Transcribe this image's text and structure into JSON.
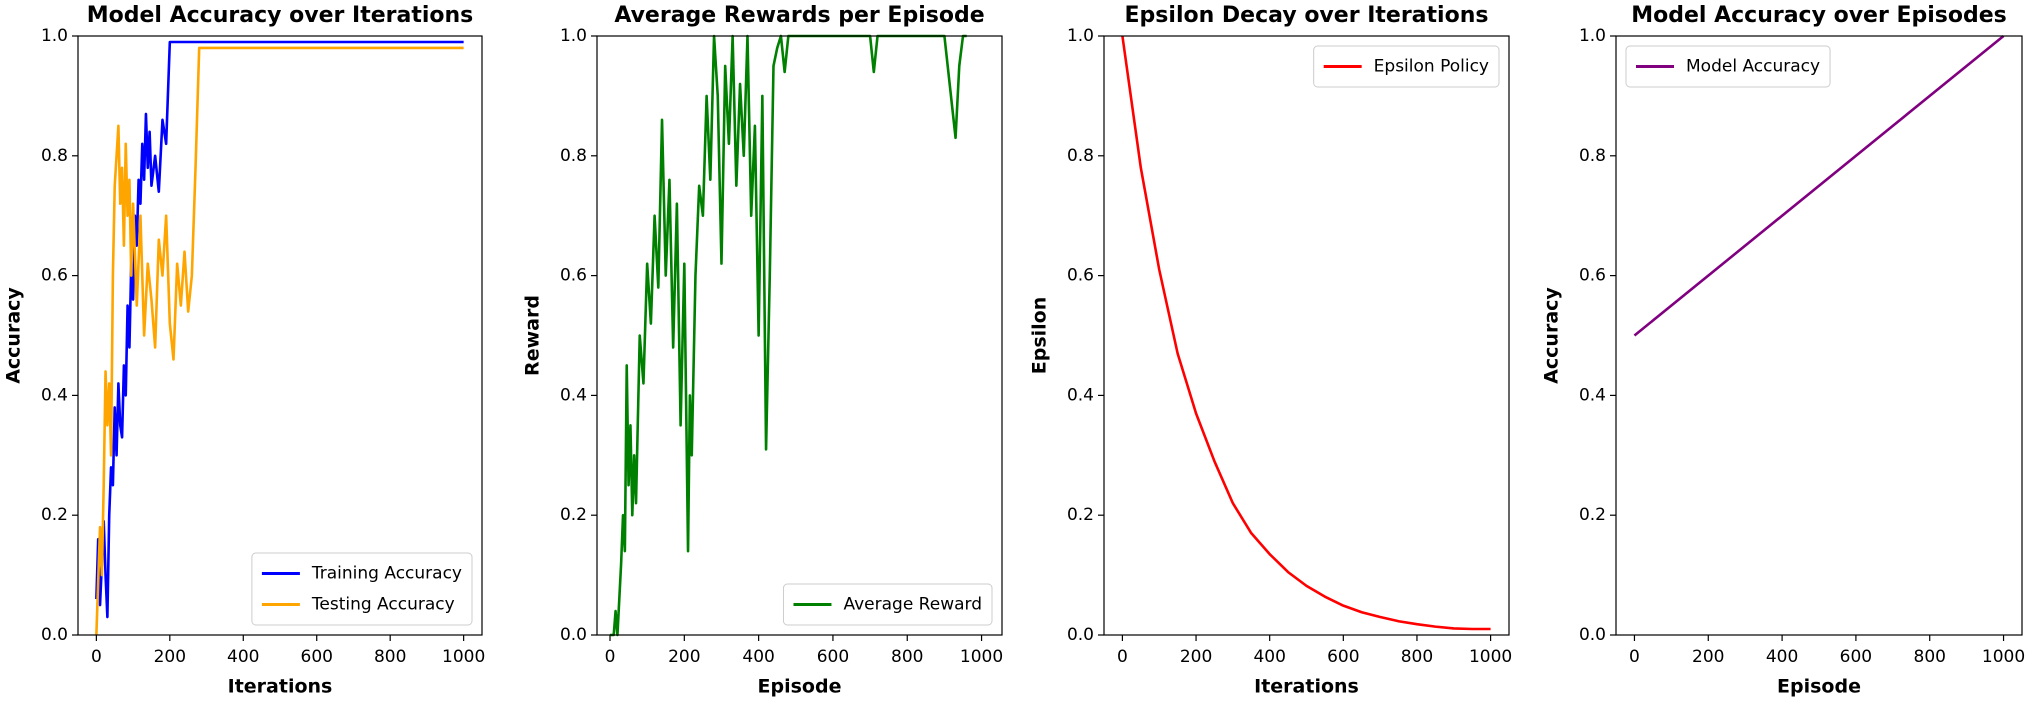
{
  "chart_data": [
    {
      "type": "line",
      "title": "Model Accuracy over Iterations",
      "xlabel": "Iterations",
      "ylabel": "Accuracy",
      "xlim": [
        -50,
        1050
      ],
      "ylim": [
        0,
        1
      ],
      "xticks": [
        0,
        200,
        400,
        600,
        800,
        1000
      ],
      "yticks": [
        {
          "value": 0,
          "label": "0.0"
        },
        {
          "value": 0.2,
          "label": "0.2"
        },
        {
          "value": 0.4,
          "label": "0.4"
        },
        {
          "value": 0.6,
          "label": "0.6"
        },
        {
          "value": 0.8,
          "label": "0.8"
        },
        {
          "value": 1,
          "label": "1.0"
        }
      ],
      "legend": "lower right",
      "series": [
        {
          "name": "Training Accuracy",
          "color": "#0000ff",
          "x": [
            0,
            5,
            10,
            15,
            20,
            25,
            30,
            35,
            40,
            45,
            50,
            55,
            60,
            65,
            70,
            75,
            80,
            85,
            90,
            95,
            100,
            105,
            110,
            115,
            120,
            125,
            130,
            135,
            140,
            145,
            150,
            160,
            170,
            180,
            190,
            200,
            1000
          ],
          "values": [
            0.06,
            0.16,
            0.05,
            0.12,
            0.19,
            0.1,
            0.03,
            0.2,
            0.28,
            0.25,
            0.38,
            0.3,
            0.42,
            0.35,
            0.33,
            0.45,
            0.4,
            0.55,
            0.48,
            0.62,
            0.56,
            0.7,
            0.65,
            0.76,
            0.72,
            0.82,
            0.76,
            0.87,
            0.78,
            0.84,
            0.75,
            0.8,
            0.74,
            0.86,
            0.82,
            0.99,
            0.99
          ]
        },
        {
          "name": "Testing Accuracy",
          "color": "#ffa500",
          "x": [
            0,
            10,
            15,
            20,
            25,
            30,
            35,
            40,
            45,
            50,
            60,
            65,
            70,
            75,
            80,
            85,
            90,
            95,
            100,
            110,
            120,
            130,
            140,
            150,
            160,
            170,
            180,
            190,
            200,
            210,
            220,
            230,
            240,
            250,
            260,
            270,
            280,
            1000
          ],
          "values": [
            0,
            0.18,
            0.1,
            0.25,
            0.44,
            0.35,
            0.42,
            0.3,
            0.6,
            0.75,
            0.85,
            0.72,
            0.78,
            0.65,
            0.82,
            0.7,
            0.76,
            0.6,
            0.72,
            0.55,
            0.7,
            0.5,
            0.62,
            0.56,
            0.48,
            0.66,
            0.6,
            0.7,
            0.52,
            0.46,
            0.62,
            0.55,
            0.64,
            0.54,
            0.6,
            0.78,
            0.98,
            0.98
          ]
        }
      ]
    },
    {
      "type": "line",
      "title": "Average Rewards per Episode",
      "xlabel": "Episode",
      "ylabel": "Reward",
      "xlim": [
        -35,
        1055
      ],
      "ylim": [
        0,
        1
      ],
      "xticks": [
        0,
        200,
        400,
        600,
        800,
        1000
      ],
      "yticks": [
        {
          "value": 0,
          "label": "0.0"
        },
        {
          "value": 0.2,
          "label": "0.2"
        },
        {
          "value": 0.4,
          "label": "0.4"
        },
        {
          "value": 0.6,
          "label": "0.6"
        },
        {
          "value": 0.8,
          "label": "0.8"
        },
        {
          "value": 1,
          "label": "1.0"
        }
      ],
      "legend": "lower right",
      "series": [
        {
          "name": "Average Reward",
          "color": "#008000",
          "x": [
            0,
            10,
            15,
            20,
            30,
            35,
            40,
            45,
            50,
            55,
            60,
            65,
            70,
            80,
            90,
            100,
            110,
            120,
            130,
            140,
            150,
            160,
            170,
            180,
            190,
            200,
            210,
            215,
            220,
            230,
            240,
            250,
            260,
            270,
            280,
            290,
            300,
            310,
            320,
            330,
            340,
            350,
            360,
            370,
            380,
            390,
            400,
            410,
            420,
            430,
            440,
            450,
            460,
            470,
            480,
            500,
            550,
            600,
            650,
            700,
            710,
            720,
            750,
            800,
            850,
            900,
            930,
            940,
            950,
            960
          ],
          "values": [
            0,
            0,
            0.04,
            0,
            0.12,
            0.2,
            0.14,
            0.45,
            0.25,
            0.35,
            0.2,
            0.3,
            0.22,
            0.5,
            0.42,
            0.62,
            0.52,
            0.7,
            0.58,
            0.86,
            0.6,
            0.76,
            0.48,
            0.72,
            0.35,
            0.62,
            0.14,
            0.4,
            0.3,
            0.6,
            0.75,
            0.7,
            0.9,
            0.76,
            1.0,
            0.9,
            0.62,
            0.95,
            0.82,
            1.0,
            0.75,
            0.92,
            0.8,
            1.0,
            0.7,
            0.85,
            0.5,
            0.9,
            0.31,
            0.6,
            0.95,
            0.98,
            1.0,
            0.94,
            1.0,
            1.0,
            1.0,
            1.0,
            1.0,
            1.0,
            0.94,
            1.0,
            1.0,
            1.0,
            1.0,
            1.0,
            0.83,
            0.95,
            1.0,
            1.0
          ]
        }
      ]
    },
    {
      "type": "line",
      "title": "Epsilon Decay over Iterations",
      "xlabel": "Iterations",
      "ylabel": "Epsilon",
      "xlim": [
        -50,
        1050
      ],
      "ylim": [
        0,
        1
      ],
      "xticks": [
        0,
        200,
        400,
        600,
        800,
        1000
      ],
      "yticks": [
        {
          "value": 0,
          "label": "0.0"
        },
        {
          "value": 0.2,
          "label": "0.2"
        },
        {
          "value": 0.4,
          "label": "0.4"
        },
        {
          "value": 0.6,
          "label": "0.6"
        },
        {
          "value": 0.8,
          "label": "0.8"
        },
        {
          "value": 1,
          "label": "1.0"
        }
      ],
      "legend": "upper right",
      "series": [
        {
          "name": "Epsilon Policy",
          "color": "#ff0000",
          "x": [
            0,
            50,
            100,
            150,
            200,
            250,
            300,
            350,
            400,
            450,
            500,
            550,
            600,
            650,
            700,
            750,
            800,
            850,
            900,
            950,
            1000
          ],
          "values": [
            1.0,
            0.78,
            0.61,
            0.47,
            0.37,
            0.29,
            0.22,
            0.17,
            0.135,
            0.105,
            0.082,
            0.064,
            0.049,
            0.038,
            0.03,
            0.023,
            0.018,
            0.014,
            0.011,
            0.01,
            0.01
          ]
        }
      ]
    },
    {
      "type": "line",
      "title": "Model Accuracy over Episodes",
      "xlabel": "Episode",
      "ylabel": "Accuracy",
      "xlim": [
        -50,
        1050
      ],
      "ylim": [
        0,
        1
      ],
      "xticks": [
        0,
        200,
        400,
        600,
        800,
        1000
      ],
      "yticks": [
        {
          "value": 0,
          "label": "0.0"
        },
        {
          "value": 0.2,
          "label": "0.2"
        },
        {
          "value": 0.4,
          "label": "0.4"
        },
        {
          "value": 0.6,
          "label": "0.6"
        },
        {
          "value": 0.8,
          "label": "0.8"
        },
        {
          "value": 1,
          "label": "1.0"
        }
      ],
      "legend": "upper left",
      "series": [
        {
          "name": "Model Accuracy",
          "color": "#800080",
          "x": [
            0,
            1000
          ],
          "values": [
            0.5,
            1.0
          ]
        }
      ]
    }
  ]
}
